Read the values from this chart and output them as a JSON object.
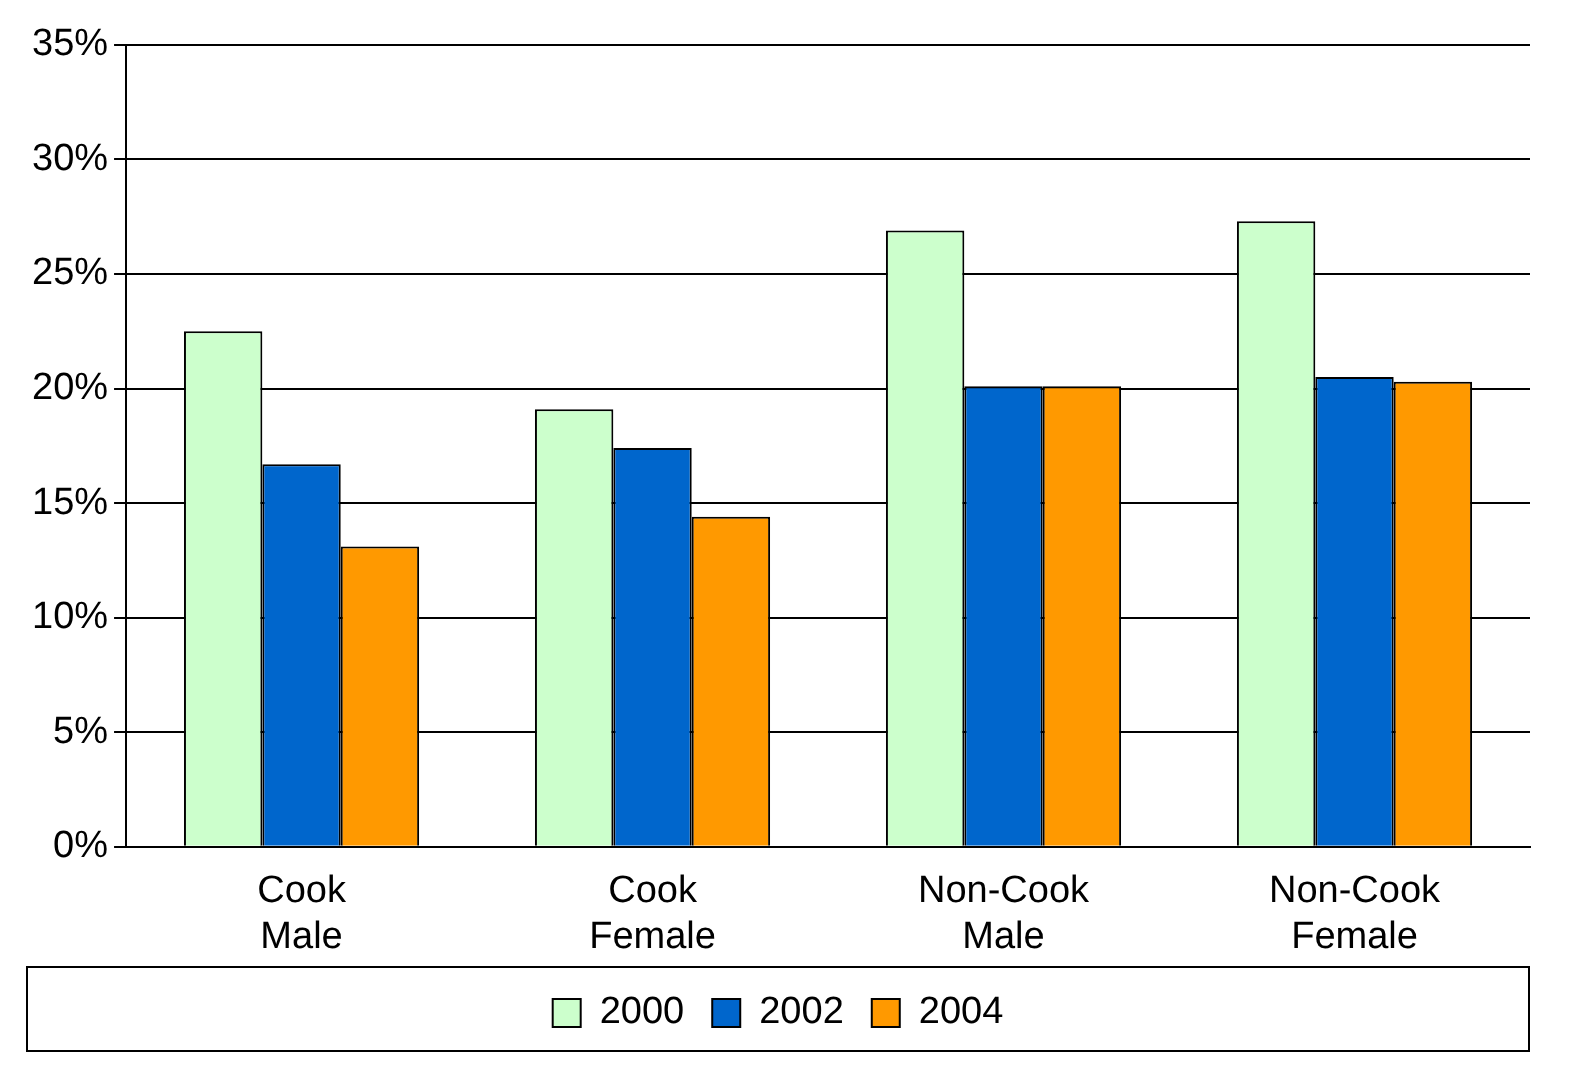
{
  "chart_data": {
    "type": "bar",
    "categories": [
      "Cook Male",
      "Cook Female",
      "Non-Cook Male",
      "Non-Cook Female"
    ],
    "series": [
      {
        "name": "2000",
        "color": "#ccffcc",
        "values": [
          22.5,
          19.1,
          26.9,
          27.3
        ]
      },
      {
        "name": "2002",
        "color": "#0066cc",
        "values": [
          16.7,
          17.4,
          20.1,
          20.5
        ]
      },
      {
        "name": "2004",
        "color": "#ff9900",
        "values": [
          13.1,
          14.4,
          20.1,
          20.3
        ]
      }
    ],
    "ylim": [
      0,
      35
    ],
    "yticks": [
      {
        "value": 0,
        "label": "0%"
      },
      {
        "value": 5,
        "label": "5%"
      },
      {
        "value": 10,
        "label": "10%"
      },
      {
        "value": 15,
        "label": "15%"
      },
      {
        "value": 20,
        "label": "20%"
      },
      {
        "value": 25,
        "label": "25%"
      },
      {
        "value": 30,
        "label": "30%"
      },
      {
        "value": 35,
        "label": "35%"
      }
    ],
    "grid": "y",
    "legend": "bottom"
  }
}
